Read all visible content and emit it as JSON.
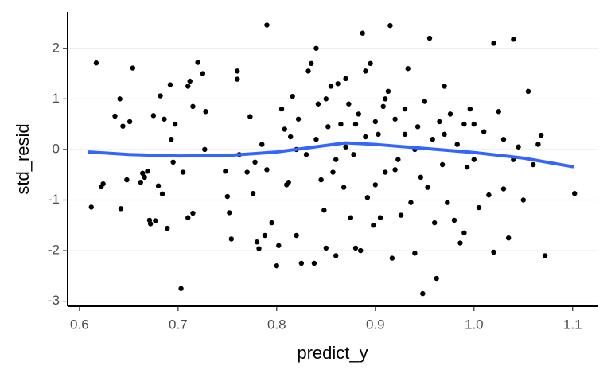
{
  "chart_data": {
    "type": "scatter",
    "x_label": "predict_y",
    "y_label": "std_resid",
    "xlim": [
      0.588,
      1.126
    ],
    "ylim": [
      -3.1,
      2.72
    ],
    "xticks": [
      0.6,
      0.7,
      0.8,
      0.9,
      {
        "value": 1,
        "label": "1.0"
      },
      1.1
    ],
    "yticks": [
      -3,
      -2,
      -1,
      0,
      1,
      2
    ],
    "grid": true,
    "color": "#000000",
    "x": [
      0.612,
      0.617,
      0.622,
      0.624,
      0.636,
      0.641,
      0.642,
      0.644,
      0.648,
      0.651,
      0.654,
      0.662,
      0.664,
      0.666,
      0.669,
      0.671,
      0.672,
      0.675,
      0.677,
      0.68,
      0.682,
      0.684,
      0.686,
      0.689,
      0.692,
      0.693,
      0.695,
      0.697,
      0.703,
      0.705,
      0.71,
      0.712,
      0.715,
      0.72,
      0.725,
      0.71,
      0.715,
      0.727,
      0.728,
      0.748,
      0.75,
      0.752,
      0.754,
      0.76,
      0.76,
      0.762,
      0.77,
      0.773,
      0.776,
      0.778,
      0.78,
      0.782,
      0.785,
      0.788,
      0.79,
      0.79,
      0.795,
      0.8,
      0.802,
      0.805,
      0.808,
      0.81,
      0.812,
      0.814,
      0.816,
      0.82,
      0.822,
      0.825,
      0.83,
      0.832,
      0.835,
      0.84,
      0.838,
      0.842,
      0.845,
      0.848,
      0.85,
      0.852,
      0.855,
      0.857,
      0.86,
      0.862,
      0.865,
      0.868,
      0.87,
      0.873,
      0.875,
      0.878,
      0.88,
      0.883,
      0.885,
      0.887,
      0.89,
      0.892,
      0.895,
      0.898,
      0.9,
      0.903,
      0.905,
      0.908,
      0.91,
      0.913,
      0.915,
      0.917,
      0.92,
      0.923,
      0.926,
      0.93,
      0.933,
      0.936,
      0.94,
      0.943,
      0.946,
      0.948,
      0.95,
      0.953,
      0.955,
      0.958,
      0.96,
      0.962,
      0.965,
      0.968,
      0.97,
      0.973,
      0.976,
      0.98,
      0.983,
      0.986,
      0.99,
      0.993,
      0.996,
      1.0,
      1.005,
      1.01,
      1.015,
      1.02,
      1.025,
      1.03,
      1.035,
      1.04,
      1.045,
      1.05,
      1.055,
      1.06,
      1.065,
      1.072,
      1.068,
      1.102,
      1.02,
      1.03,
      0.99,
      0.84,
      0.87,
      0.89,
      0.86,
      0.92,
      0.94,
      0.82,
      0.9,
      0.88,
      0.85,
      0.91,
      0.93,
      0.97,
      1.0,
      1.04
    ],
    "y": [
      -1.14,
      1.71,
      -0.74,
      -0.68,
      0.66,
      1.0,
      -1.17,
      0.46,
      -0.6,
      0.55,
      1.61,
      -0.65,
      -0.47,
      -0.55,
      -0.43,
      -1.4,
      -1.47,
      0.67,
      -1.41,
      -0.72,
      1.06,
      -0.88,
      0.6,
      -1.56,
      1.28,
      0.2,
      -0.25,
      0.5,
      -2.75,
      -0.45,
      1.25,
      1.35,
      0.85,
      1.72,
      1.5,
      -1.35,
      -1.26,
      0.0,
      0.75,
      -0.43,
      -0.93,
      -1.25,
      -1.77,
      1.55,
      1.39,
      -0.1,
      -0.45,
      0.65,
      -0.87,
      -0.25,
      -1.83,
      -1.96,
      0.1,
      -1.7,
      2.46,
      -0.4,
      -1.45,
      -2.3,
      -1.9,
      0.8,
      0.4,
      -0.7,
      -0.65,
      0.25,
      1.05,
      -1.7,
      0.6,
      -2.25,
      -0.1,
      1.55,
      1.7,
      2.0,
      -2.25,
      0.9,
      -0.6,
      -1.2,
      -1.95,
      0.45,
      1.25,
      -0.45,
      -2.1,
      1.3,
      0.5,
      -0.75,
      1.4,
      0.9,
      -1.35,
      -0.1,
      -1.95,
      0.7,
      -2.0,
      2.3,
      1.55,
      -0.95,
      1.7,
      -1.5,
      0.55,
      0.3,
      -1.35,
      0.85,
      -0.45,
      1.15,
      2.45,
      -2.15,
      0.6,
      -0.2,
      -1.3,
      0.8,
      1.6,
      -1.05,
      -2.05,
      0.45,
      -0.55,
      -2.85,
      0.95,
      -0.75,
      2.2,
      0.2,
      -1.45,
      -2.55,
      0.55,
      -0.3,
      1.25,
      -1.05,
      0.7,
      -1.4,
      0.1,
      -1.85,
      0.5,
      -0.35,
      0.8,
      -0.2,
      -1.15,
      0.35,
      -0.9,
      2.1,
      0.75,
      0.2,
      -1.75,
      2.18,
      0.05,
      -1.0,
      1.15,
      -0.3,
      0.1,
      -2.1,
      0.28,
      -0.87,
      -2.03,
      -0.78,
      -1.65,
      0.2,
      0.05,
      0.25,
      -0.2,
      -0.4,
      0.0,
      0.0,
      -0.7,
      0.5,
      1.0,
      1.0,
      0.3,
      0.3,
      0.5,
      -0.2
    ],
    "smooth": {
      "color": "#3366ff",
      "x": [
        0.61,
        0.65,
        0.7,
        0.75,
        0.8,
        0.85,
        0.87,
        0.9,
        0.95,
        1.0,
        1.05,
        1.1
      ],
      "y": [
        -0.05,
        -0.1,
        -0.13,
        -0.12,
        -0.05,
        0.08,
        0.13,
        0.1,
        0.02,
        -0.06,
        -0.17,
        -0.34
      ]
    }
  }
}
